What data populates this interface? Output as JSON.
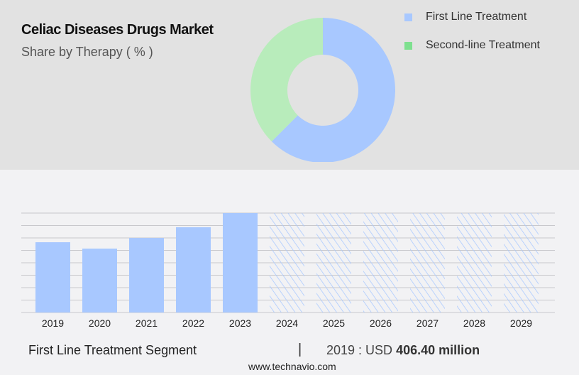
{
  "title": "Celiac Diseases Drugs Market",
  "subtitle": "Share by Therapy ( % )",
  "chart_data": [
    {
      "type": "pie",
      "variant": "donut",
      "slices": [
        {
          "name": "First Line Treatment",
          "value": 62.5,
          "color": "#a8c8ff"
        },
        {
          "name": "Second-line Treatment",
          "value": 37.5,
          "color": "#b8ecbb"
        }
      ],
      "legend": [
        {
          "label": "First Line Treatment",
          "color": "#a8c8ff"
        },
        {
          "label": "Second-line Treatment",
          "color": "#7ee08f"
        }
      ],
      "legend_placement": "top-right"
    },
    {
      "type": "bar",
      "categories": [
        "2019",
        "2020",
        "2021",
        "2022",
        "2023",
        "2024",
        "2025",
        "2026",
        "2027",
        "2028",
        "2029"
      ],
      "values": [
        406.4,
        369.5,
        431,
        493,
        575,
        null,
        null,
        null,
        null,
        null,
        null
      ],
      "forecast_from": "2024",
      "forecast_style": "hatched",
      "ylim": [
        0,
        575
      ],
      "grid": true,
      "color": "#a8c8ff"
    }
  ],
  "footer": {
    "segment": "First Line Treatment Segment",
    "separator": "|",
    "value_prefix": "2019 : USD",
    "value_bold": "406.40 million",
    "site": "www.technavio.com"
  }
}
